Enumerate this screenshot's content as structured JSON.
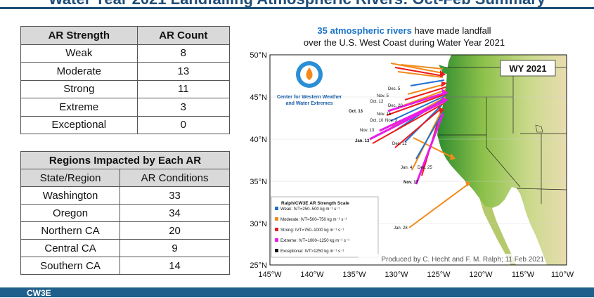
{
  "slide": {
    "title": "Water Year 2021 Landfalling Atmospheric Rivers: Oct-Feb Summary"
  },
  "strength_table": {
    "headers": [
      "AR Strength",
      "AR Count"
    ],
    "rows": [
      {
        "label": "Weak",
        "value": "8"
      },
      {
        "label": "Moderate",
        "value": "13"
      },
      {
        "label": "Strong",
        "value": "11"
      },
      {
        "label": "Extreme",
        "value": "3"
      },
      {
        "label": "Exceptional",
        "value": "0"
      }
    ]
  },
  "region_table": {
    "title": "Regions Impacted by Each AR",
    "headers": [
      "State/Region",
      "AR Conditions"
    ],
    "rows": [
      {
        "label": "Washington",
        "value": "33"
      },
      {
        "label": "Oregon",
        "value": "34"
      },
      {
        "label": "Northern CA",
        "value": "20"
      },
      {
        "label": "Central CA",
        "value": "9"
      },
      {
        "label": "Southern CA",
        "value": "14"
      }
    ]
  },
  "map": {
    "headline_count": "35 atmospheric rivers",
    "headline_rest": " have made landfall",
    "headline_line2": "over the U.S. West Coast during Water Year 2021",
    "badge": "WY 2021",
    "org_line1": "Center for Western Weather",
    "org_line2": "and Water Extremes",
    "credit": "Produced by C. Hecht and F. M. Ralph; 11 Feb 2021",
    "lat_ticks": [
      "50°N",
      "45°N",
      "40°N",
      "35°N",
      "30°N",
      "25°N"
    ],
    "lon_ticks": [
      "145°W",
      "140°W",
      "135°W",
      "130°W",
      "125°W",
      "120°W",
      "115°W",
      "110°W"
    ],
    "legend": {
      "title": "Ralph/CW3E AR Strength Scale",
      "items": [
        {
          "label": "Weak: IVT=250–500 kg m⁻¹ s⁻¹",
          "color": "#1f6fd0"
        },
        {
          "label": "Moderate: IVT=500–750 kg m⁻¹ s⁻¹",
          "color": "#f28a1b"
        },
        {
          "label": "Strong: IVT=750–1000 kg m⁻¹ s⁻¹",
          "color": "#ea1c1c"
        },
        {
          "label": "Extreme: IVT=1000–1250 kg m⁻¹ s⁻¹",
          "color": "#e61ee6"
        },
        {
          "label": "Exceptional: IVT>1250 kg m⁻¹ s⁻¹",
          "color": "#111111"
        }
      ]
    },
    "date_labels": [
      "Dec. 5",
      "Nov. 5",
      "Oct. 12",
      "Dec. 20",
      "Oct. 13",
      "Nov. 15",
      "Oct. 10",
      "Nov. 3",
      "Nov. 13",
      "Jan. 13",
      "Dec. 12",
      "Jan. 4",
      "Dec. 25",
      "Nov. 17",
      "Jan. 28"
    ]
  },
  "footer": {
    "logo": "CW3E"
  }
}
